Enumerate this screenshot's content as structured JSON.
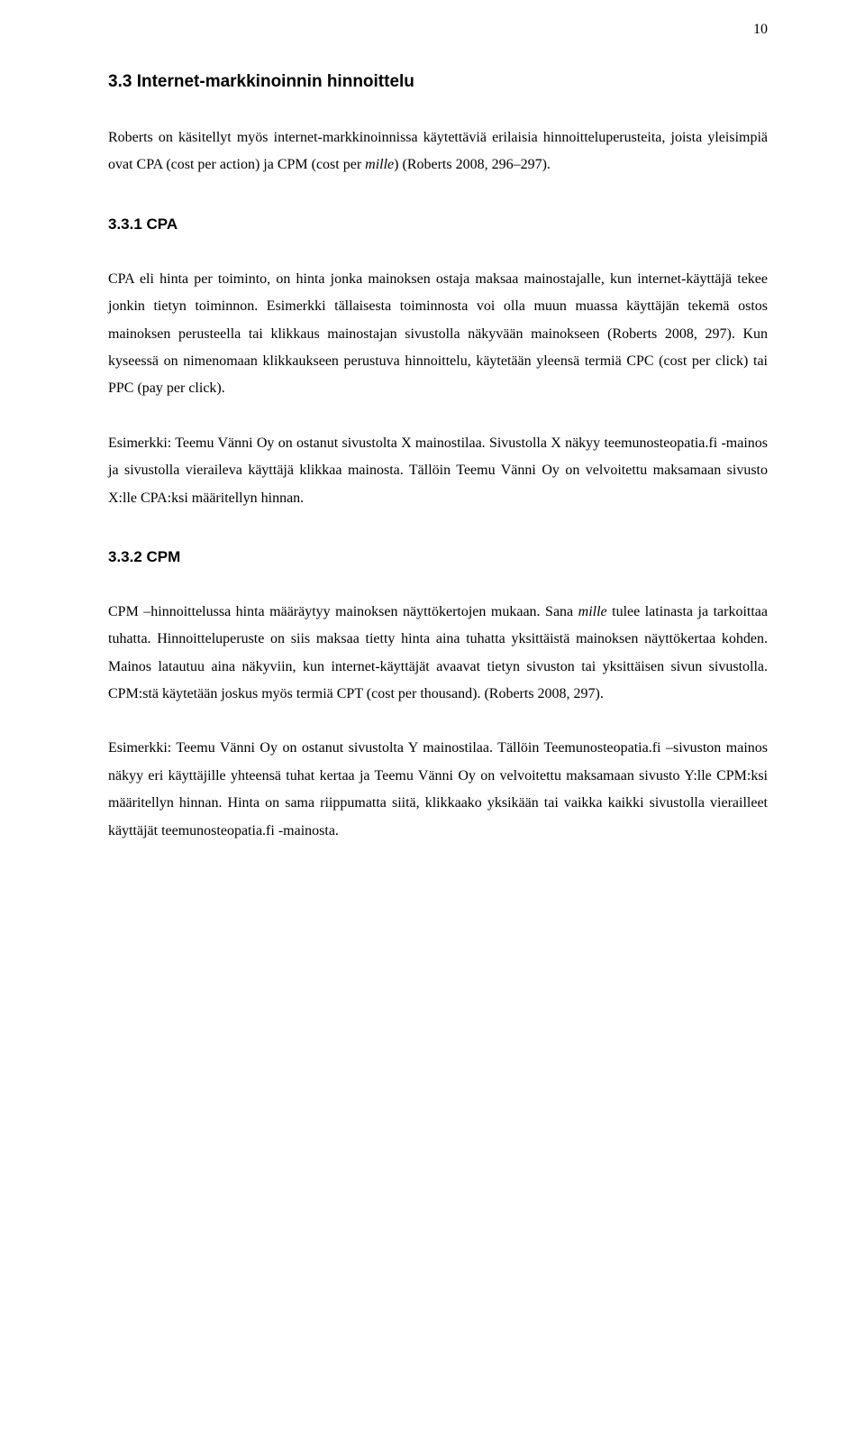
{
  "page_number": "10",
  "h_3_3": "3.3 Internet-markkinoinnin hinnoittelu",
  "p1_pre": "Roberts on käsitellyt myös internet-markkinoinnissa käytettäviä erilaisia hinnoitteluperusteita, joista yleisimpiä ovat CPA (cost per action) ja CPM (cost per ",
  "p1_it": "mille",
  "p1_post": ") (Roberts 2008, 296–297).",
  "h_3_3_1": "3.3.1 CPA",
  "p2": "CPA eli hinta per toiminto, on hinta jonka mainoksen ostaja maksaa mainostajalle, kun internet-käyttäjä tekee jonkin tietyn toiminnon. Esimerkki tällaisesta toiminnosta voi olla muun muassa käyttäjän tekemä ostos mainoksen perusteella tai klikkaus mainostajan sivustolla näkyvään mainokseen (Roberts 2008, 297). Kun kyseessä on nimenomaan klikkaukseen perustuva hinnoittelu, käytetään yleensä termiä CPC (cost per click) tai PPC (pay per click).",
  "p3": "Esimerkki: Teemu Vänni Oy on ostanut sivustolta X mainostilaa. Sivustolla X näkyy teemunosteopatia.fi -mainos ja sivustolla vieraileva käyttäjä klikkaa mainosta. Tällöin Teemu Vänni Oy on velvoitettu maksamaan sivusto X:lle CPA:ksi määritellyn hinnan.",
  "h_3_3_2": "3.3.2 CPM",
  "p4_a": "CPM –hinnoittelussa hinta määräytyy mainoksen näyttökertojen mukaan. Sana ",
  "p4_it": "mille",
  "p4_b": " tulee latinasta ja tarkoittaa tuhatta. Hinnoitteluperuste on siis maksaa tietty hinta aina tuhatta yksittäistä mainoksen näyttökertaa kohden. Mainos latautuu aina näkyviin, kun internet-käyttäjät avaavat tietyn sivuston tai yksittäisen sivun sivustolla. CPM:stä käytetään joskus myös termiä CPT (cost per thousand). (Roberts 2008, 297).",
  "p5": "Esimerkki: Teemu Vänni Oy on ostanut sivustolta Y mainostilaa. Tällöin Teemunosteopatia.fi –sivuston mainos näkyy eri käyttäjille yhteensä tuhat kertaa ja Teemu Vänni Oy on velvoitettu maksamaan sivusto Y:lle CPM:ksi määritellyn hinnan. Hinta on sama riippumatta siitä, klikkaako yksikään tai vaikka kaikki sivustolla vierailleet käyttäjät teemunosteopatia.fi -mainosta."
}
